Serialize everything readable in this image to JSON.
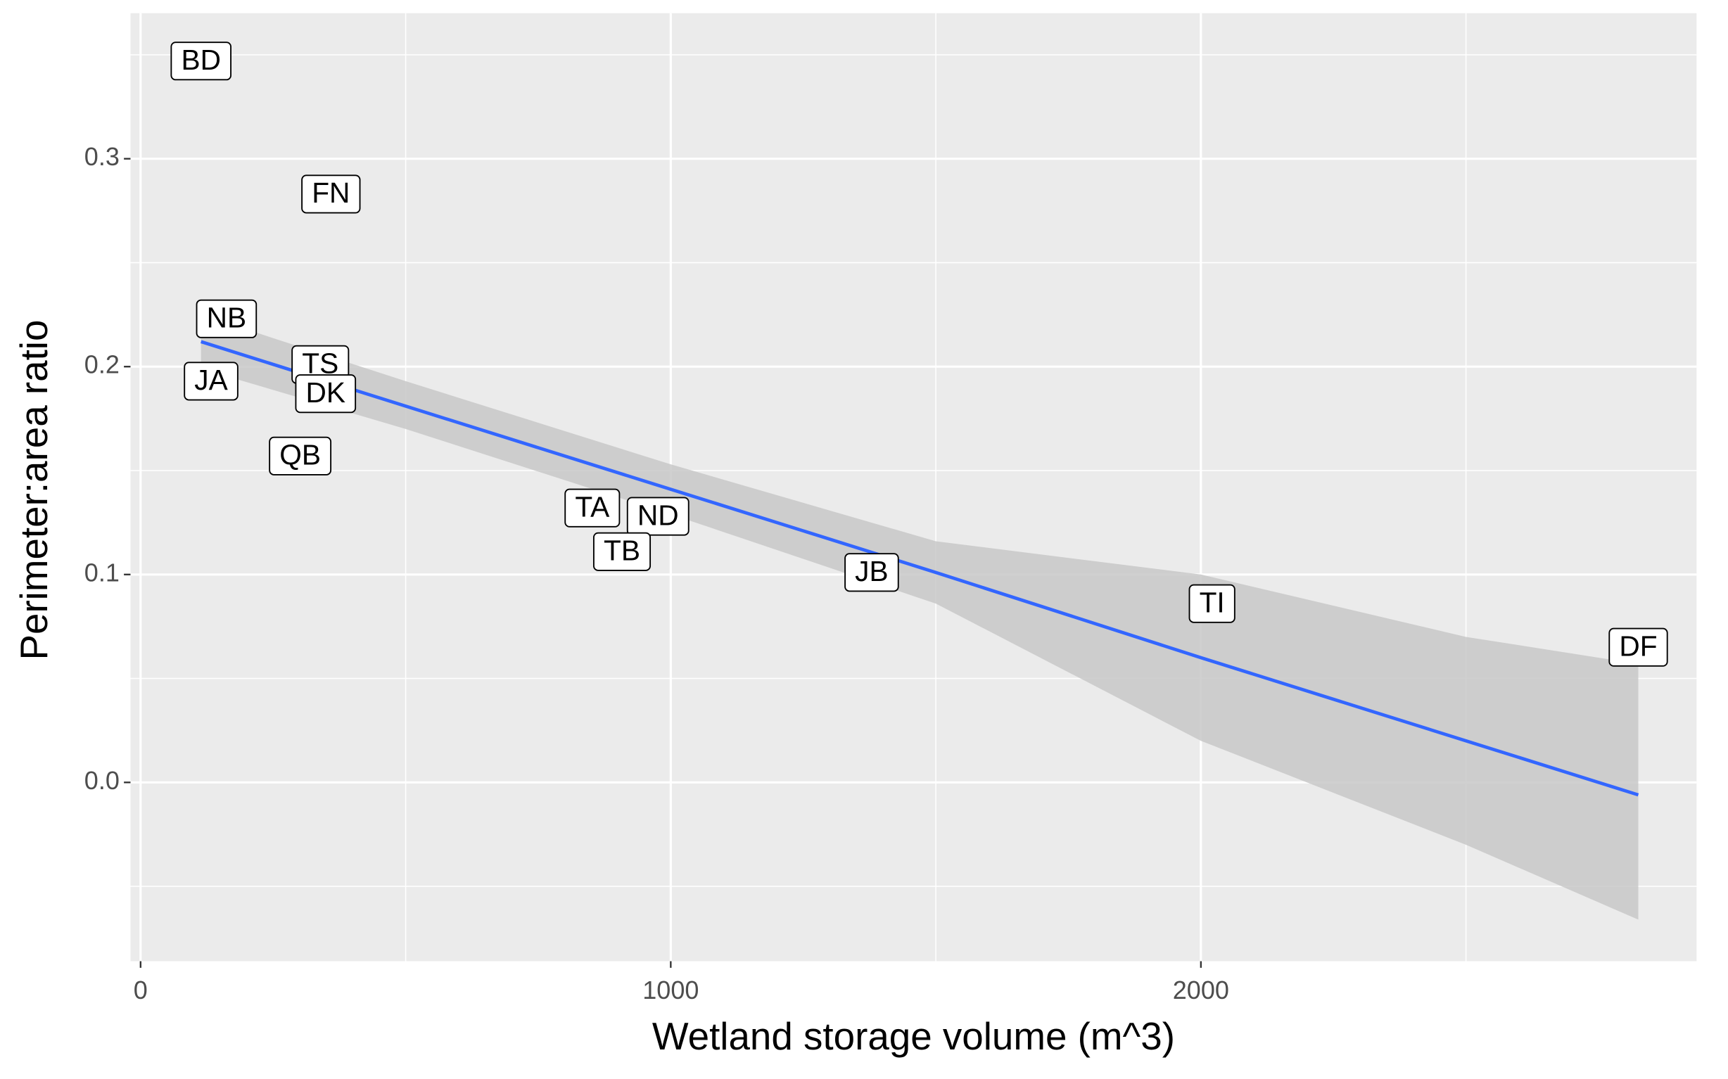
{
  "chart_data": {
    "type": "scatter",
    "x_label": "Wetland storage volume (m^3)",
    "y_label": "Perimeter:area ratio",
    "xlim": [
      -19,
      2935
    ],
    "ylim": [
      -0.086,
      0.37
    ],
    "xticks": [
      0,
      1000,
      2000
    ],
    "yticks": [
      {
        "value": 0,
        "label": "0.0"
      },
      0.1,
      0.2,
      0.3
    ],
    "xminor": [
      500,
      1500,
      2500
    ],
    "yminor": [
      -0.05,
      0.05,
      0.15,
      0.25,
      0.35
    ],
    "grid": true,
    "labels": [
      "BD",
      "FN",
      "NB",
      "JA",
      "TS",
      "DK",
      "QB",
      "TA",
      "ND",
      "TB",
      "JB",
      "TI",
      "DF"
    ],
    "x": [
      114,
      359,
      162,
      133,
      339,
      349,
      301,
      852,
      976,
      908,
      1379,
      2021,
      2825
    ],
    "values": [
      0.347,
      0.283,
      0.223,
      0.193,
      0.201,
      0.187,
      0.157,
      0.132,
      0.128,
      0.111,
      0.101,
      0.086,
      0.065
    ],
    "fit": {
      "color": "#3366ff",
      "band_color": "#c8c8c8",
      "x": [
        114,
        500,
        1000,
        1500,
        2000,
        2500,
        2825
      ],
      "values": [
        0.212,
        0.181,
        0.141,
        0.101,
        0.06,
        0.02,
        -0.006
      ],
      "lower": [
        0.199,
        0.17,
        0.129,
        0.086,
        0.02,
        -0.03,
        -0.066
      ],
      "upper": [
        0.225,
        0.193,
        0.153,
        0.116,
        0.1,
        0.07,
        0.057
      ]
    }
  }
}
